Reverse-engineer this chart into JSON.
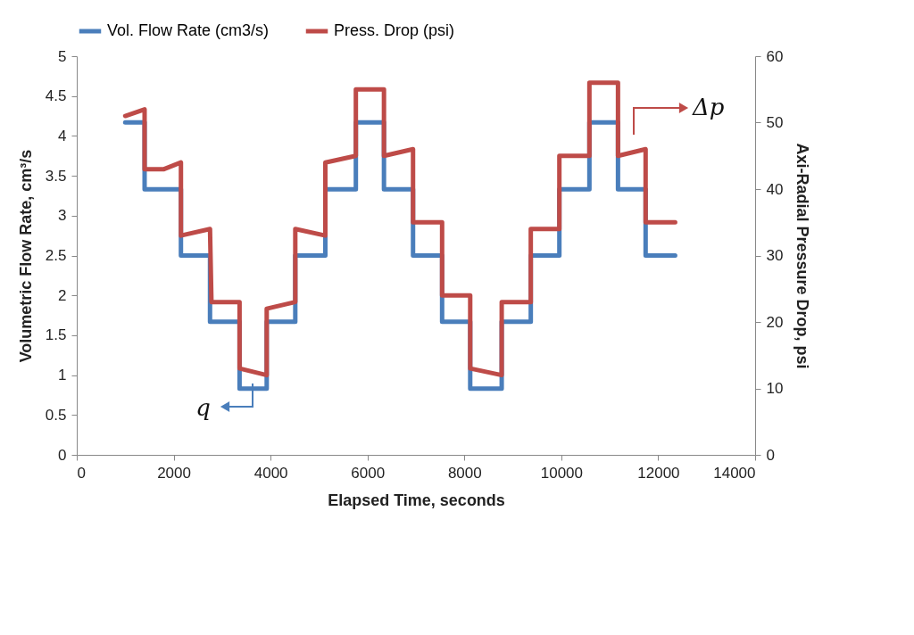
{
  "chart_data": {
    "type": "line",
    "xlabel": "Elapsed Time, seconds",
    "ylabel": "Volumetric Flow Rate, cm³/s",
    "y2label": "Axi-Radial Pressure Drop, psi",
    "xlim": [
      0,
      14000
    ],
    "xticks": [
      0,
      2000,
      4000,
      6000,
      8000,
      10000,
      12000,
      14000
    ],
    "ylim": [
      0,
      5
    ],
    "yticks": [
      0,
      0.5,
      1,
      1.5,
      2,
      2.5,
      3,
      3.5,
      4,
      4.5,
      5
    ],
    "y2lim": [
      0,
      60
    ],
    "y2ticks": [
      0,
      10,
      20,
      30,
      40,
      50,
      60
    ],
    "grid": false,
    "legend": "top",
    "line_style": "solid",
    "annotations": [
      "q",
      "Δp"
    ],
    "series": [
      {
        "name": "Vol. Flow Rate (cm3/s)",
        "color": "#4a7ebb",
        "x": [
          1000,
          1400,
          1400,
          2150,
          2150,
          2750,
          2750,
          3360,
          3360,
          3920,
          3920,
          4510,
          4510,
          5130,
          5130,
          5760,
          5760,
          6340,
          6340,
          6940,
          6940,
          7540,
          7540,
          8120,
          8120,
          8770,
          8770,
          9370,
          9370,
          9960,
          9960,
          10580,
          10580,
          11170,
          11170,
          11740,
          11740,
          12350
        ],
        "values": [
          4.17,
          4.17,
          3.33,
          3.33,
          2.5,
          2.5,
          1.67,
          1.67,
          0.83,
          0.83,
          1.67,
          1.67,
          2.5,
          2.5,
          3.33,
          3.33,
          4.17,
          4.17,
          3.33,
          3.33,
          2.5,
          2.5,
          1.67,
          1.67,
          0.83,
          0.83,
          1.67,
          1.67,
          2.5,
          2.5,
          3.33,
          3.33,
          4.17,
          4.17,
          3.33,
          3.33,
          2.5,
          2.5
        ]
      },
      {
        "name": "Press. Drop (psi)",
        "color": "#be4b48",
        "axis": "y2",
        "x": [
          1000,
          1400,
          1400,
          1800,
          2150,
          2150,
          2750,
          2780,
          3360,
          3360,
          3920,
          3920,
          4510,
          4510,
          5130,
          5130,
          5760,
          5760,
          6340,
          6340,
          6940,
          6940,
          7540,
          7540,
          8120,
          8120,
          8770,
          8770,
          9370,
          9370,
          9960,
          9960,
          10580,
          10580,
          11170,
          11170,
          11740,
          11740,
          12350
        ],
        "values": [
          51,
          52,
          43,
          43,
          44,
          33,
          34,
          23,
          23,
          13,
          12,
          22,
          23,
          34,
          33,
          44,
          45,
          55,
          55,
          45,
          46,
          35,
          35,
          24,
          24,
          13,
          12,
          23,
          23,
          34,
          34,
          45,
          45,
          56,
          56,
          45,
          46,
          35,
          35
        ]
      }
    ]
  }
}
